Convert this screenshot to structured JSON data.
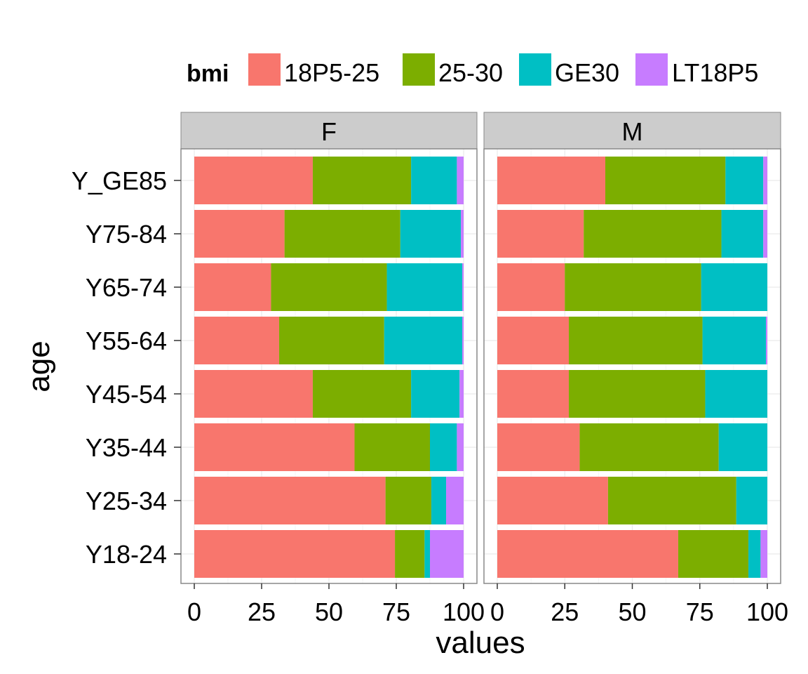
{
  "chart_data": {
    "type": "bar",
    "orientation": "horizontal",
    "stacked": true,
    "xlabel": "values",
    "ylabel": "age",
    "xlim": [
      0,
      100
    ],
    "xticks": [
      "0",
      "25",
      "50",
      "75",
      "100"
    ],
    "grid": true,
    "legend_position": "top",
    "legend_title": "bmi",
    "categories": [
      "Y_GE85",
      "Y75-84",
      "Y65-74",
      "Y55-64",
      "Y45-54",
      "Y35-44",
      "Y25-34",
      "Y18-24"
    ],
    "series_names": [
      "18P5-25",
      "25-30",
      "GE30",
      "LT18P5"
    ],
    "series_colors": [
      "#F8766D",
      "#7CAE00",
      "#00BFC4",
      "#C77CFF"
    ],
    "facets": [
      {
        "label": "F",
        "series": [
          {
            "name": "18P5-25",
            "values": [
              44,
              33.5,
              28.5,
              31.5,
              44,
              59.5,
              71,
              74.5
            ]
          },
          {
            "name": "25-30",
            "values": [
              36.5,
              43,
              43,
              39,
              36.5,
              28,
              17,
              11
            ]
          },
          {
            "name": "GE30",
            "values": [
              17,
              22.5,
              28,
              29,
              18,
              10,
              5.5,
              2
            ]
          },
          {
            "name": "LT18P5",
            "values": [
              2.5,
              1,
              0.5,
              0.5,
              1.5,
              2.5,
              6.5,
              12.5
            ]
          }
        ]
      },
      {
        "label": "M",
        "series": [
          {
            "name": "18P5-25",
            "values": [
              40,
              32,
              25,
              26.5,
              26.5,
              30.5,
              41,
              67
            ]
          },
          {
            "name": "25-30",
            "values": [
              44.5,
              51,
              50.5,
              49.5,
              50.5,
              51.5,
              47.5,
              26
            ]
          },
          {
            "name": "GE30",
            "values": [
              14,
              15.5,
              24.5,
              23.5,
              23,
              18,
              11.5,
              4.5
            ]
          },
          {
            "name": "LT18P5",
            "values": [
              1.5,
              1.5,
              0,
              0.5,
              0,
              0,
              0,
              2.5
            ]
          }
        ]
      }
    ]
  }
}
